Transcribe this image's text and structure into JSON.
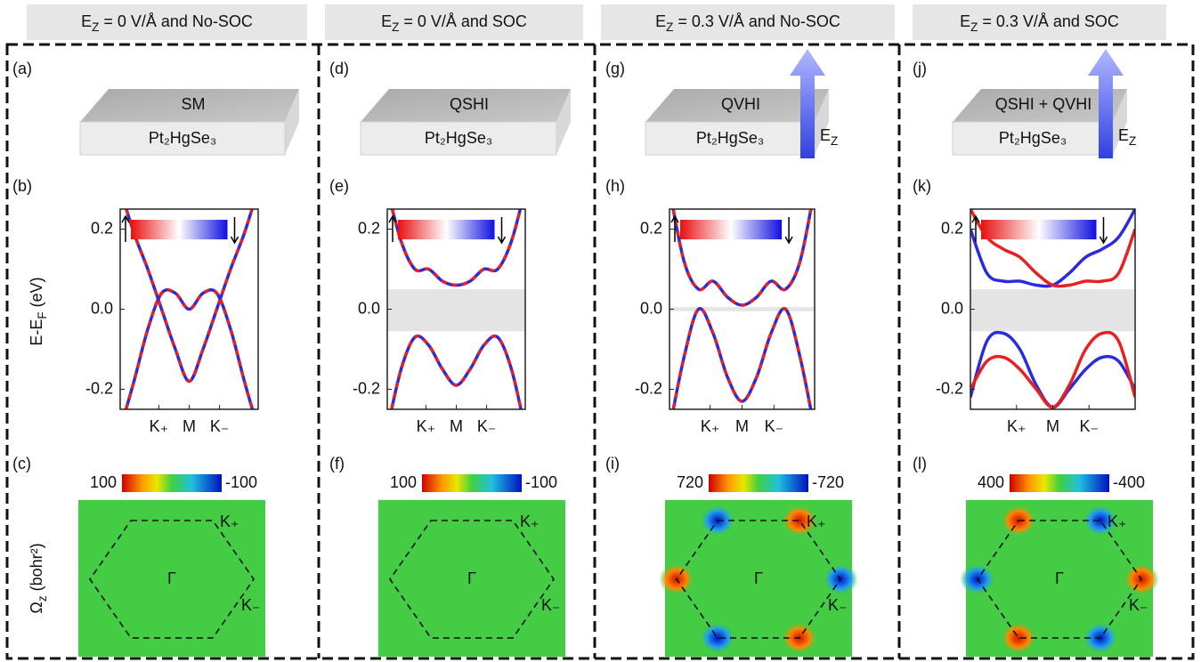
{
  "columns": [
    {
      "header": [
        {
          "t": "E"
        },
        {
          "t": "Z",
          "sub": true
        },
        {
          "t": " = 0 V/Å and No-SOC"
        }
      ],
      "slab": {
        "label": "(a)",
        "phase": "SM",
        "material": "Pt₂HgSe₃",
        "field": null
      },
      "bands": {
        "label": "(b)",
        "gap": null,
        "series": [
          {
            "colors": [
              "#2a2ae0",
              "#e82020"
            ],
            "values": [
              0.3,
              0.19,
              0.1,
              0.0,
              -0.1,
              -0.18,
              -0.1,
              0.0,
              0.1,
              0.19,
              0.3
            ]
          },
          {
            "colors": [
              "#2a2ae0",
              "#e82020"
            ],
            "values": [
              -0.3,
              -0.18,
              -0.05,
              0.04,
              0.04,
              0.0,
              0.04,
              0.04,
              -0.05,
              -0.18,
              -0.3
            ]
          }
        ]
      },
      "berry": {
        "label": "(c)",
        "colorbar": [
          100,
          -100
        ],
        "spots": null
      }
    },
    {
      "header": [
        {
          "t": "E"
        },
        {
          "t": "Z",
          "sub": true
        },
        {
          "t": " = 0 V/Å and SOC"
        }
      ],
      "slab": {
        "label": "(d)",
        "phase": "QSHI",
        "material": "Pt₂HgSe₃",
        "field": null
      },
      "bands": {
        "label": "(e)",
        "gap": [
          -0.055,
          0.05
        ],
        "series": [
          {
            "colors": [
              "#2a2ae0",
              "#e82020"
            ],
            "values": [
              0.3,
              0.17,
              0.1,
              0.1,
              0.07,
              0.06,
              0.07,
              0.1,
              0.1,
              0.17,
              0.3
            ]
          },
          {
            "colors": [
              "#2a2ae0",
              "#e82020"
            ],
            "values": [
              -0.3,
              -0.15,
              -0.07,
              -0.09,
              -0.15,
              -0.19,
              -0.15,
              -0.09,
              -0.07,
              -0.15,
              -0.3
            ]
          }
        ]
      },
      "berry": {
        "label": "(f)",
        "colorbar": [
          100,
          -100
        ],
        "spots": null
      }
    },
    {
      "header": [
        {
          "t": "E"
        },
        {
          "t": "Z",
          "sub": true
        },
        {
          "t": " = 0.3 V/Å and No-SOC"
        }
      ],
      "slab": {
        "label": "(g)",
        "phase": "QVHI",
        "material": "Pt₂HgSe₃",
        "field": [
          {
            "t": "E"
          },
          {
            "t": "Z",
            "sub": true
          }
        ]
      },
      "bands": {
        "label": "(h)",
        "gap": [
          -0.005,
          0.005
        ],
        "series": [
          {
            "colors": [
              "#2a2ae0",
              "#e82020"
            ],
            "values": [
              0.3,
              0.12,
              0.05,
              0.07,
              0.03,
              0.01,
              0.03,
              0.07,
              0.05,
              0.12,
              0.3
            ]
          },
          {
            "colors": [
              "#2a2ae0",
              "#e82020"
            ],
            "values": [
              -0.3,
              -0.12,
              0.0,
              -0.06,
              -0.17,
              -0.23,
              -0.17,
              -0.06,
              0.0,
              -0.12,
              -0.3
            ]
          }
        ]
      },
      "berry": {
        "label": "(i)",
        "colorbar": [
          720,
          -720
        ],
        "spots": [
          "#1f3fe0",
          "#e02a10",
          "#1f3fe0",
          "#e02a10",
          "#1f3fe0",
          "#e02a10"
        ]
      }
    },
    {
      "header": [
        {
          "t": "E"
        },
        {
          "t": "Z",
          "sub": true
        },
        {
          "t": " = 0.3 V/Å and SOC"
        }
      ],
      "slab": {
        "label": "(j)",
        "phase": "QSHI + QVHI",
        "material": "Pt₂HgSe₃",
        "field": [
          {
            "t": "E"
          },
          {
            "t": "Z",
            "sub": true
          }
        ]
      },
      "bands": {
        "label": "(k)",
        "gap": [
          -0.055,
          0.05
        ],
        "series": [
          {
            "colors": [
              "#2a2ae0"
            ],
            "values": [
              0.2,
              0.09,
              0.07,
              0.07,
              0.06,
              0.06,
              0.09,
              0.13,
              0.15,
              0.18,
              0.25
            ]
          },
          {
            "colors": [
              "#e82020"
            ],
            "values": [
              0.25,
              0.18,
              0.15,
              0.13,
              0.09,
              0.06,
              0.06,
              0.07,
              0.07,
              0.09,
              0.2
            ]
          },
          {
            "colors": [
              "#2a2ae0"
            ],
            "values": [
              -0.22,
              -0.08,
              -0.06,
              -0.1,
              -0.19,
              -0.245,
              -0.2,
              -0.15,
              -0.12,
              -0.13,
              -0.2
            ]
          },
          {
            "colors": [
              "#e82020"
            ],
            "values": [
              -0.2,
              -0.13,
              -0.12,
              -0.15,
              -0.2,
              -0.245,
              -0.19,
              -0.1,
              -0.06,
              -0.08,
              -0.22
            ]
          }
        ]
      },
      "berry": {
        "label": "(l)",
        "colorbar": [
          400,
          -400
        ],
        "spots": [
          "#e02a10",
          "#1f3fe0",
          "#e02a10",
          "#1f3fe0",
          "#e02a10",
          "#1f3fe0"
        ]
      }
    }
  ],
  "band_axis": {
    "x": [
      0,
      0.1,
      0.2,
      0.3,
      0.4,
      0.5,
      0.6,
      0.7,
      0.8,
      0.9,
      1.0
    ],
    "xlim": [
      0,
      1
    ],
    "ylim": [
      -0.25,
      0.25
    ],
    "yticks": [
      -0.2,
      {
        "value": 0,
        "label": "0.0"
      },
      0.2
    ],
    "xticks": [
      {
        "value": 0.28,
        "label": "K₊"
      },
      {
        "value": 0.5,
        "label": "M"
      },
      {
        "value": 0.72,
        "label": "K₋"
      }
    ],
    "ylabel": [
      {
        "t": "E-E"
      },
      {
        "t": "F",
        "sub": true
      },
      {
        "t": " (eV)"
      }
    ]
  },
  "berry_axis": {
    "ylabel": [
      {
        "t": "Ω"
      },
      {
        "t": "z",
        "sub": true
      },
      {
        "t": " (bohr²)"
      }
    ],
    "labels": [
      "Γ",
      "K₊",
      "K₋"
    ]
  }
}
